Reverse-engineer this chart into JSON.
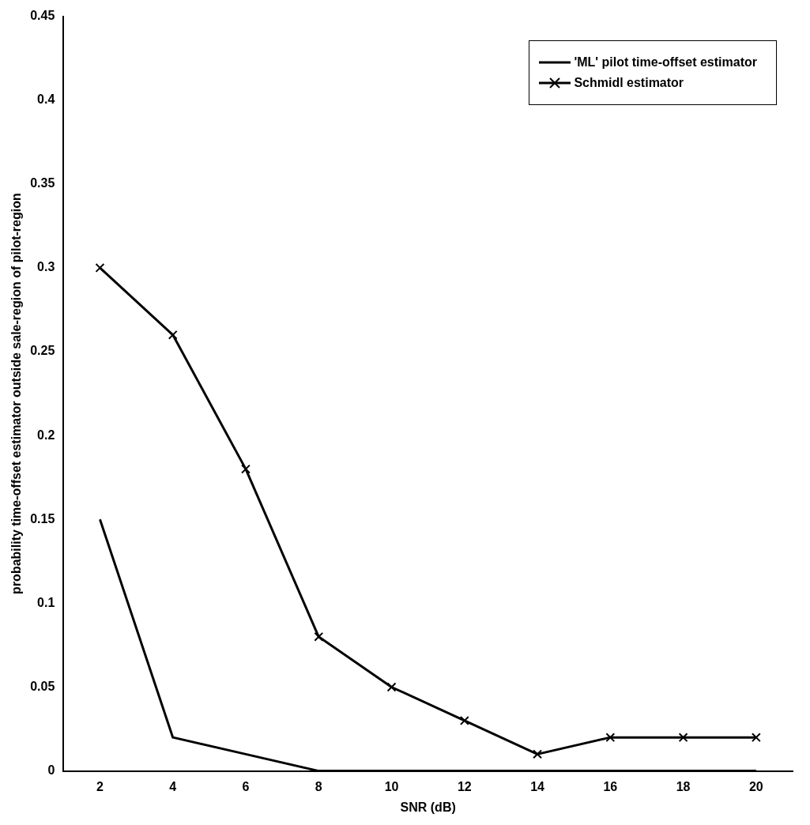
{
  "chart_data": {
    "type": "line",
    "xlabel": "SNR (dB)",
    "ylabel": "probability time-offset estimator outside sale-region of pilot-region",
    "categories": [
      "2",
      "4",
      "6",
      "8",
      "10",
      "12",
      "14",
      "16",
      "18",
      "20"
    ],
    "series": [
      {
        "name": "'ML' pilot time-offset estimator",
        "color": "#000000",
        "marker": "none",
        "values": [
          0.15,
          0.02,
          0.01,
          0,
          0,
          0,
          0,
          0,
          0,
          0
        ]
      },
      {
        "name": "Schmidl estimator",
        "color": "#000000",
        "marker": "cross",
        "values": [
          0.3,
          0.26,
          0.18,
          0.08,
          0.05,
          0.03,
          0.01,
          0.02,
          0.02,
          0.02
        ]
      }
    ],
    "ylim": [
      0,
      0.45
    ],
    "yticks": [
      0,
      0.05,
      0.1,
      0.15,
      0.2,
      0.25,
      0.3,
      0.35,
      0.4,
      0.45
    ],
    "grid": false,
    "legend": "top right",
    "line_style": "solid"
  }
}
